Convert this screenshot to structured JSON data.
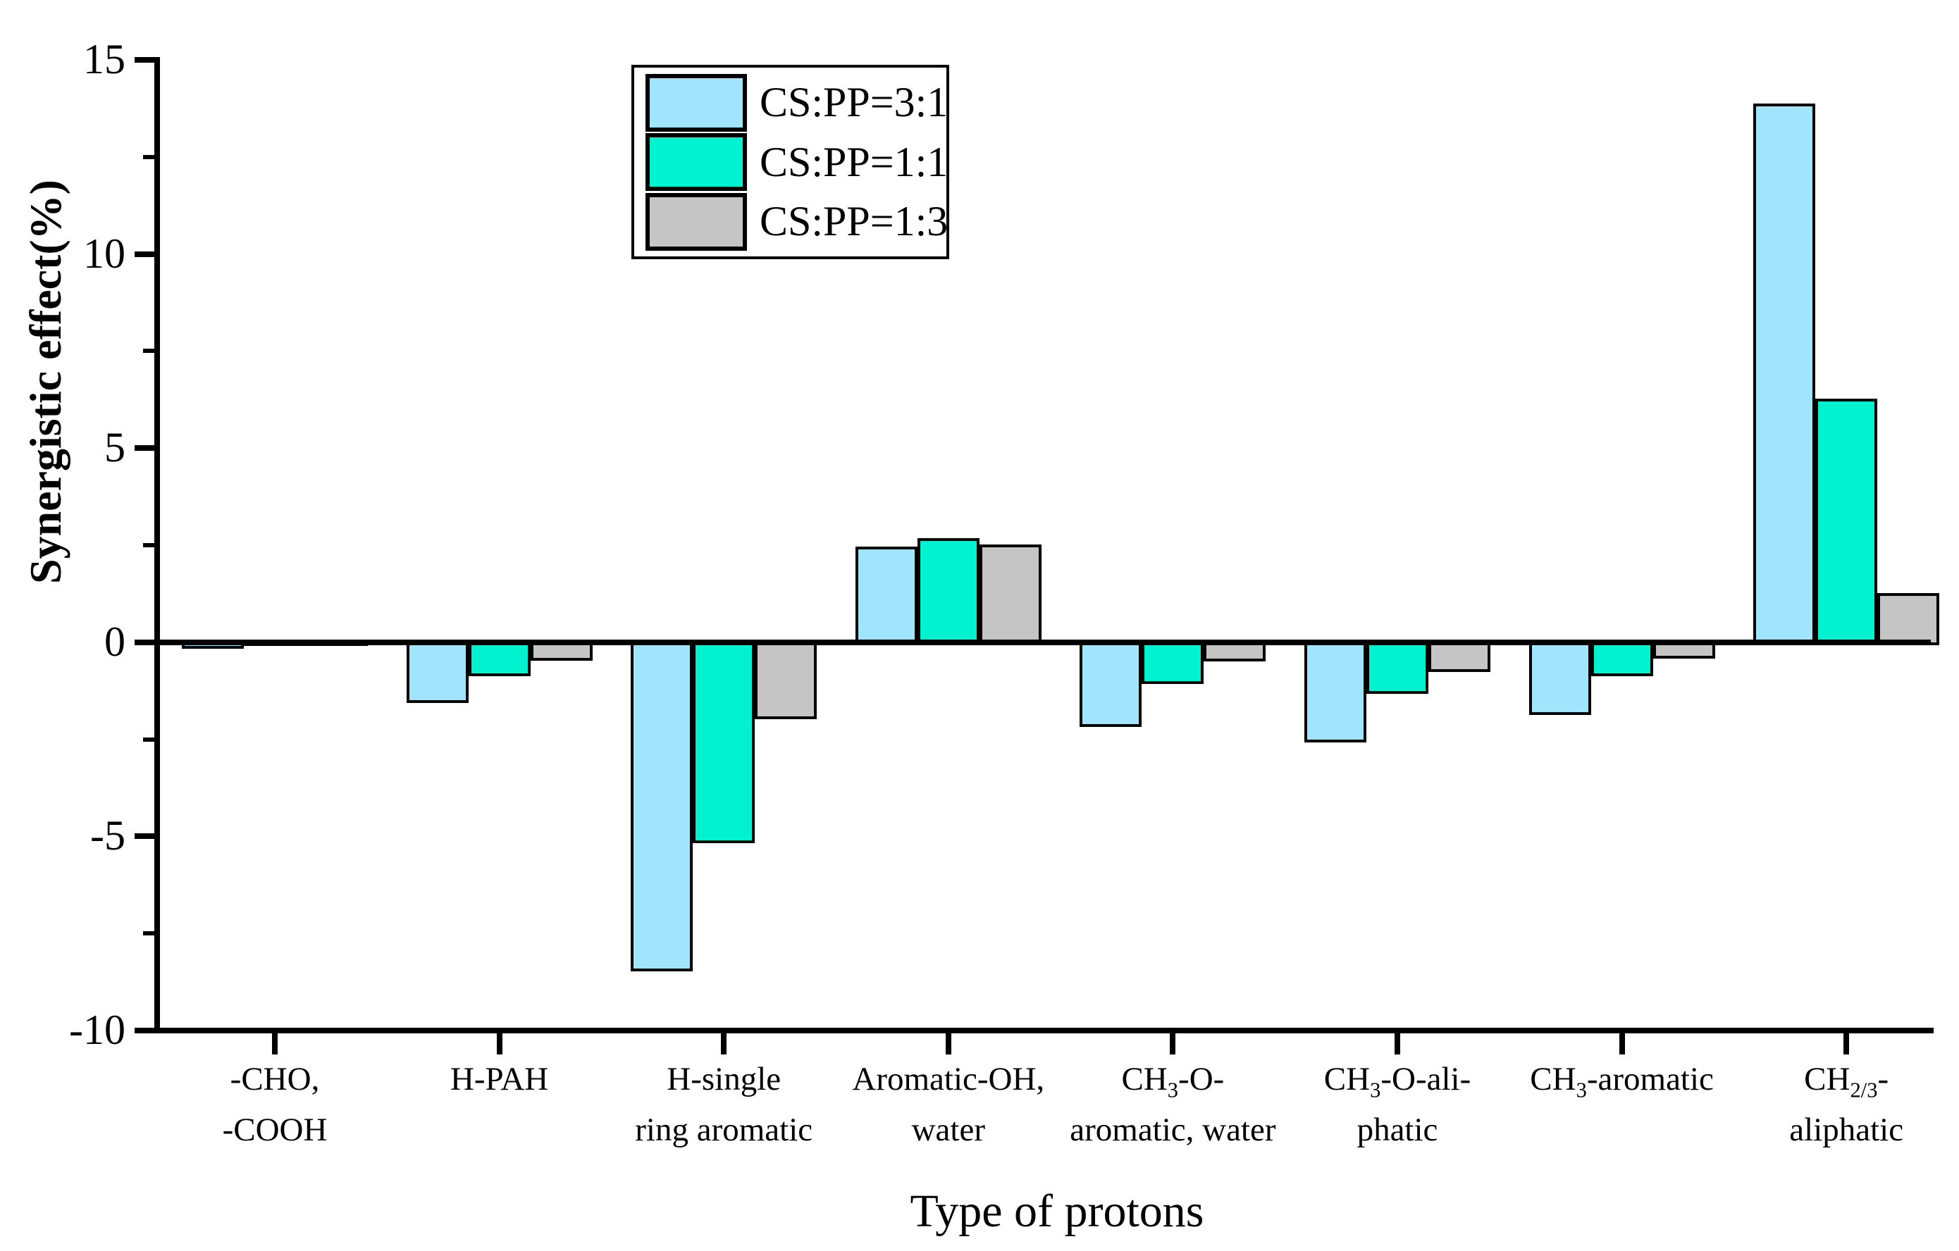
{
  "chart_data": {
    "type": "bar",
    "title": "",
    "xlabel": "Type of protons",
    "ylabel": "Synergistic effect(%)",
    "ylim": [
      -10,
      15
    ],
    "ytick_major_interval": 5,
    "ytick_minor_interval": 2.5,
    "ytick_labels": [
      "15",
      "10",
      "5",
      "0",
      "-5",
      "-10"
    ],
    "grid": false,
    "legend_position": "top-left-inside",
    "axis_color": "#000000",
    "bar_outline_color": "#000000",
    "background_color": "#FFFFFF",
    "categories": [
      {
        "lines": [
          "-CHO,",
          "-COOH"
        ]
      },
      {
        "lines": [
          "H-PAH"
        ]
      },
      {
        "lines": [
          "H-single",
          "ring aromatic"
        ]
      },
      {
        "lines": [
          "Aromatic-OH,",
          "water"
        ]
      },
      {
        "lines": [
          "CH_{3}-O-",
          "aromatic, water"
        ]
      },
      {
        "lines": [
          "CH_{3}-O-ali-",
          "phatic"
        ]
      },
      {
        "lines": [
          "CH_{3}-aromatic"
        ]
      },
      {
        "lines": [
          "CH_{2/3}-",
          "aliphatic"
        ]
      }
    ],
    "series": [
      {
        "name": "CS:PP=3:1",
        "color": "#A0E5FB",
        "values": [
          -0.1,
          -1.5,
          -8.4,
          2.4,
          -2.1,
          -2.5,
          -1.8,
          13.8
        ]
      },
      {
        "name": "CS:PP=1:1",
        "color": "#00F2CE",
        "values": [
          -0.02,
          -0.8,
          -5.1,
          2.6,
          -1.0,
          -1.25,
          -0.8,
          6.2
        ]
      },
      {
        "name": "CS:PP=1:3",
        "color": "#C5C5C5",
        "values": [
          -0.02,
          -0.4,
          -1.9,
          2.45,
          -0.42,
          -0.7,
          -0.35,
          1.2
        ]
      }
    ]
  }
}
